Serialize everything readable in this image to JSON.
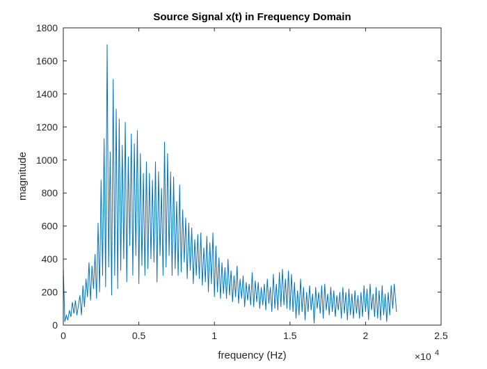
{
  "chart_data": {
    "type": "line",
    "title": "Source Signal x(t) in Frequency Domain",
    "xlabel": "frequency (Hz)",
    "ylabel": "magnitude",
    "xlim": [
      0,
      25000
    ],
    "ylim": [
      0,
      1800
    ],
    "x_tick_labels": [
      "0",
      "0.5",
      "1",
      "1.5",
      "2",
      "2.5"
    ],
    "x_tick_values": [
      0,
      5000,
      10000,
      15000,
      20000,
      25000
    ],
    "x_exponent_label": "×10",
    "x_exponent_power": "4",
    "y_tick_labels": [
      "0",
      "200",
      "400",
      "600",
      "800",
      "1000",
      "1200",
      "1400",
      "1600",
      "1800"
    ],
    "y_tick_values": [
      0,
      200,
      400,
      600,
      800,
      1000,
      1200,
      1400,
      1600,
      1800
    ],
    "grid": false,
    "box": true,
    "line_color": "#0072BD",
    "series": [
      {
        "x": [
          0,
          100,
          200,
          300,
          400,
          500,
          600,
          700,
          800,
          900,
          1000,
          1100,
          1200,
          1300,
          1400,
          1500,
          1600,
          1700,
          1800,
          1900,
          2000,
          2100,
          2200,
          2300,
          2400,
          2500,
          2600,
          2700,
          2800,
          2900,
          3000,
          3100,
          3200,
          3300,
          3400,
          3500,
          3600,
          3700,
          3800,
          3900,
          4000,
          4100,
          4200,
          4300,
          4400,
          4500,
          4600,
          4700,
          4800,
          4900,
          5000,
          5100,
          5200,
          5300,
          5400,
          5500,
          5600,
          5700,
          5800,
          5900,
          6000,
          6100,
          6200,
          6300,
          6400,
          6500,
          6600,
          6700,
          6800,
          6900,
          7000,
          7100,
          7200,
          7300,
          7400,
          7500,
          7600,
          7700,
          7800,
          7900,
          8000,
          8100,
          8200,
          8300,
          8400,
          8500,
          8600,
          8700,
          8800,
          8900,
          9000,
          9100,
          9200,
          9300,
          9400,
          9500,
          9600,
          9700,
          9800,
          9900,
          10000,
          10100,
          10200,
          10300,
          10400,
          10500,
          10600,
          10700,
          10800,
          10900,
          11000,
          11100,
          11200,
          11300,
          11400,
          11500,
          11600,
          11700,
          11800,
          11900,
          12000,
          12100,
          12200,
          12300,
          12400,
          12500,
          12600,
          12700,
          12800,
          12900,
          13000,
          13100,
          13200,
          13300,
          13400,
          13500,
          13600,
          13700,
          13800,
          13900,
          14000,
          14100,
          14200,
          14300,
          14400,
          14500,
          14600,
          14700,
          14800,
          14900,
          15000,
          15100,
          15200,
          15300,
          15400,
          15500,
          15600,
          15700,
          15800,
          15900,
          16000,
          16100,
          16200,
          16300,
          16400,
          16500,
          16600,
          16700,
          16800,
          16900,
          17000,
          17100,
          17200,
          17300,
          17400,
          17500,
          17600,
          17700,
          17800,
          17900,
          18000,
          18100,
          18200,
          18300,
          18400,
          18500,
          18600,
          18700,
          18800,
          18900,
          19000,
          19100,
          19200,
          19300,
          19400,
          19500,
          19600,
          19700,
          19800,
          19900,
          20000,
          20100,
          20200,
          20300,
          20400,
          20500,
          20600,
          20700,
          20800,
          20900,
          21000,
          21100,
          21200,
          21300,
          21400,
          21500,
          21600,
          21700,
          21800,
          21900,
          22050
        ],
        "y": [
          350,
          20,
          60,
          30,
          90,
          50,
          140,
          70,
          150,
          60,
          120,
          180,
          60,
          240,
          110,
          280,
          170,
          380,
          150,
          360,
          220,
          430,
          160,
          620,
          200,
          880,
          300,
          1130,
          230,
          1700,
          350,
          1050,
          180,
          1490,
          300,
          1310,
          220,
          1250,
          330,
          1090,
          400,
          1230,
          260,
          1020,
          480,
          1160,
          300,
          1100,
          420,
          1180,
          250,
          1040,
          360,
          920,
          300,
          990,
          340,
          920,
          400,
          880,
          380,
          990,
          260,
          930,
          420,
          830,
          300,
          1110,
          350,
          1040,
          420,
          930,
          300,
          900,
          340,
          750,
          300,
          850,
          320,
          700,
          380,
          650,
          280,
          620,
          330,
          590,
          250,
          520,
          300,
          550,
          280,
          560,
          240,
          470,
          260,
          540,
          200,
          500,
          250,
          560,
          170,
          480,
          200,
          410,
          160,
          380,
          190,
          350,
          160,
          400,
          180,
          330,
          140,
          300,
          170,
          360,
          130,
          280,
          160,
          300,
          110,
          260,
          150,
          250,
          120,
          320,
          110,
          270,
          140,
          260,
          100,
          230,
          120,
          250,
          90,
          280,
          130,
          230,
          80,
          310,
          100,
          250,
          90,
          320,
          110,
          340,
          120,
          280,
          100,
          330,
          90,
          310,
          80,
          260,
          40,
          210,
          60,
          280,
          80,
          230,
          30,
          200,
          80,
          240,
          90,
          190,
          10,
          230,
          100,
          200,
          70,
          240,
          40,
          250,
          90,
          190,
          60,
          230,
          80,
          210,
          50,
          180,
          90,
          200,
          40,
          230,
          70,
          200,
          30,
          220,
          60,
          190,
          40,
          210,
          70,
          180,
          40,
          200,
          50,
          240,
          80,
          220,
          30,
          250,
          90,
          190,
          50,
          230,
          40,
          210,
          30,
          240,
          60,
          190,
          20,
          200,
          60,
          240,
          100,
          250,
          80
        ]
      }
    ]
  }
}
